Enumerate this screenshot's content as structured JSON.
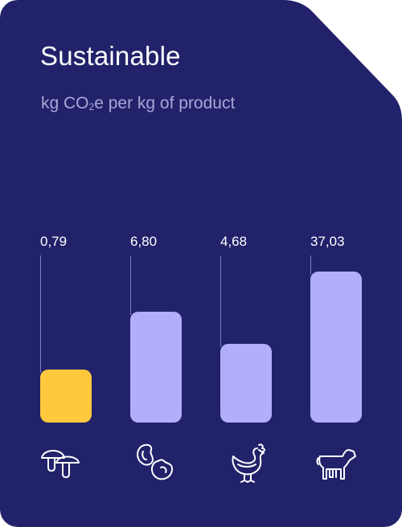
{
  "card": {
    "title": "Sustainable",
    "subtitle_pre": "kg CO",
    "subtitle_sub": "2",
    "subtitle_post": "e per kg of product",
    "background": "#22226b"
  },
  "chart_data": {
    "type": "bar",
    "title": "Sustainable",
    "subtitle": "kg CO₂e per kg of product",
    "categories": [
      "mushroom",
      "beans",
      "chicken",
      "beef"
    ],
    "value_labels": [
      "0,79",
      "6,80",
      "4,68",
      "37,03"
    ],
    "values": [
      0.79,
      6.8,
      4.68,
      37.03
    ],
    "bar_colors": [
      "#ffc83d",
      "#b1aefc",
      "#b1aefc",
      "#b1aefc"
    ],
    "grid": false,
    "legend": "none",
    "icons": [
      "mushroom-icon",
      "beans-icon",
      "chicken-icon",
      "cow-icon"
    ]
  }
}
